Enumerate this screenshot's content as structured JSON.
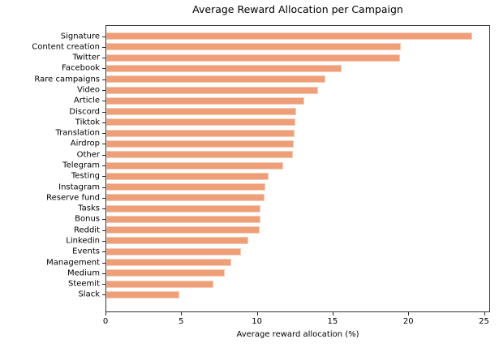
{
  "chart_data": {
    "type": "bar",
    "orientation": "horizontal",
    "title": "Average Reward Allocation per Campaign",
    "xlabel": "Average reward allocation (%)",
    "ylabel": "",
    "categories": [
      "Signature",
      "Content creation",
      "Twitter",
      "Facebook",
      "Rare campaigns",
      "Video",
      "Article",
      "Discord",
      "Tiktok",
      "Translation",
      "Airdrop",
      "Other",
      "Telegram",
      "Testing",
      "Instagram",
      "Reserve fund",
      "Tasks",
      "Bonus",
      "Reddit",
      "Linkedin",
      "Events",
      "Management",
      "Medium",
      "Steemit",
      "Slack"
    ],
    "values": [
      24.25,
      19.55,
      19.5,
      15.6,
      14.55,
      14.05,
      13.15,
      12.6,
      12.55,
      12.5,
      12.45,
      12.4,
      11.75,
      10.75,
      10.55,
      10.5,
      10.25,
      10.2,
      10.15,
      9.4,
      8.95,
      8.3,
      7.85,
      7.1,
      4.85
    ],
    "xticks": [
      0,
      5,
      10,
      15,
      20,
      25
    ],
    "xlim": [
      0,
      25.4
    ],
    "grid": false,
    "legend": "none",
    "bar_color": "#ef9f78",
    "spine_color": "#333333"
  }
}
